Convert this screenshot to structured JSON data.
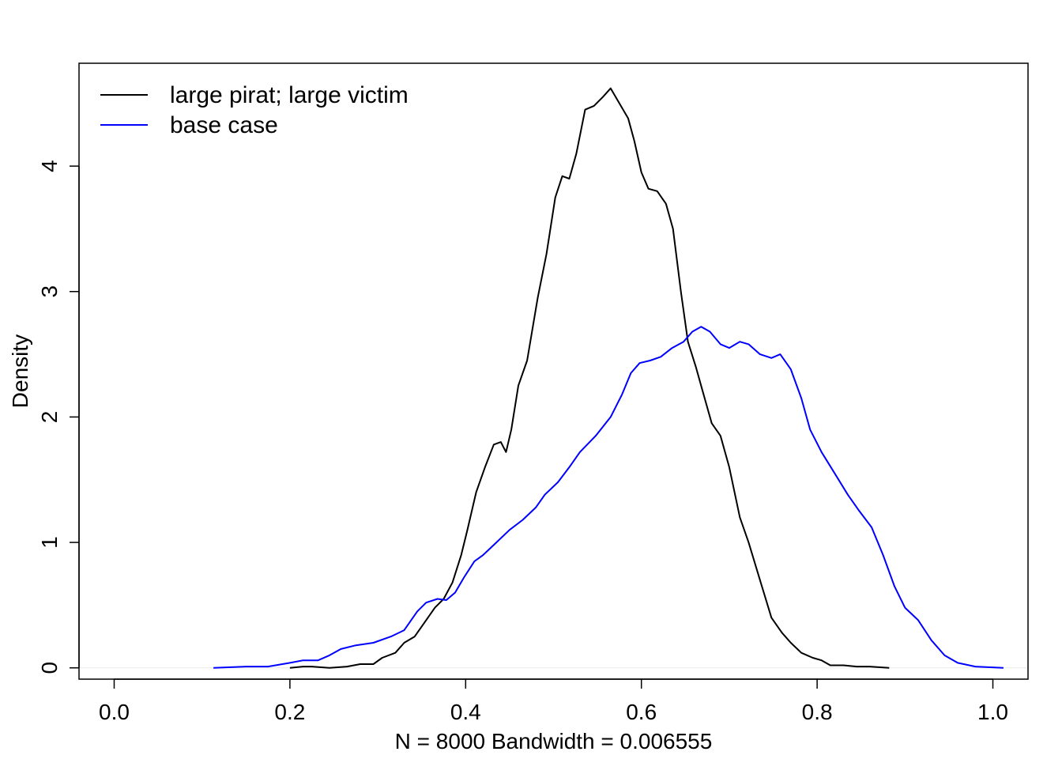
{
  "chart_data": {
    "type": "line",
    "title": "",
    "xlabel": "N = 8000   Bandwidth = 0.006555",
    "ylabel": "Density",
    "xlim": [
      -0.04,
      1.04
    ],
    "ylim": [
      -0.09,
      4.82
    ],
    "x_ticks": [
      0.0,
      0.2,
      0.4,
      0.6,
      0.8,
      1.0
    ],
    "x_tick_labels": [
      "0.0",
      "0.2",
      "0.4",
      "0.6",
      "0.8",
      "1.0"
    ],
    "y_ticks": [
      0,
      1,
      2,
      3,
      4
    ],
    "y_tick_labels": [
      "0",
      "1",
      "2",
      "3",
      "4"
    ],
    "grid": false,
    "legend_position": "top-left",
    "zero_line": true,
    "series": [
      {
        "name": "large pirat; large victim",
        "color": "#000000",
        "points": [
          [
            0.2,
            0.0
          ],
          [
            0.215,
            0.01
          ],
          [
            0.225,
            0.01
          ],
          [
            0.245,
            0.0
          ],
          [
            0.265,
            0.01
          ],
          [
            0.28,
            0.03
          ],
          [
            0.295,
            0.03
          ],
          [
            0.305,
            0.08
          ],
          [
            0.32,
            0.12
          ],
          [
            0.33,
            0.2
          ],
          [
            0.342,
            0.25
          ],
          [
            0.355,
            0.38
          ],
          [
            0.365,
            0.48
          ],
          [
            0.375,
            0.55
          ],
          [
            0.385,
            0.68
          ],
          [
            0.395,
            0.9
          ],
          [
            0.402,
            1.1
          ],
          [
            0.412,
            1.4
          ],
          [
            0.422,
            1.6
          ],
          [
            0.432,
            1.78
          ],
          [
            0.44,
            1.8
          ],
          [
            0.446,
            1.72
          ],
          [
            0.452,
            1.9
          ],
          [
            0.46,
            2.25
          ],
          [
            0.47,
            2.45
          ],
          [
            0.482,
            2.95
          ],
          [
            0.492,
            3.3
          ],
          [
            0.502,
            3.75
          ],
          [
            0.51,
            3.92
          ],
          [
            0.518,
            3.9
          ],
          [
            0.526,
            4.1
          ],
          [
            0.536,
            4.45
          ],
          [
            0.546,
            4.48
          ],
          [
            0.556,
            4.55
          ],
          [
            0.565,
            4.62
          ],
          [
            0.575,
            4.5
          ],
          [
            0.585,
            4.38
          ],
          [
            0.592,
            4.2
          ],
          [
            0.6,
            3.95
          ],
          [
            0.608,
            3.82
          ],
          [
            0.618,
            3.8
          ],
          [
            0.628,
            3.7
          ],
          [
            0.636,
            3.5
          ],
          [
            0.645,
            3.0
          ],
          [
            0.653,
            2.6
          ],
          [
            0.662,
            2.4
          ],
          [
            0.67,
            2.2
          ],
          [
            0.68,
            1.95
          ],
          [
            0.69,
            1.85
          ],
          [
            0.7,
            1.6
          ],
          [
            0.712,
            1.2
          ],
          [
            0.722,
            1.0
          ],
          [
            0.735,
            0.7
          ],
          [
            0.748,
            0.4
          ],
          [
            0.76,
            0.28
          ],
          [
            0.77,
            0.2
          ],
          [
            0.782,
            0.12
          ],
          [
            0.795,
            0.08
          ],
          [
            0.805,
            0.06
          ],
          [
            0.815,
            0.02
          ],
          [
            0.83,
            0.02
          ],
          [
            0.845,
            0.01
          ],
          [
            0.86,
            0.01
          ],
          [
            0.882,
            0.0
          ]
        ]
      },
      {
        "name": "base case",
        "color": "#0000FF",
        "points": [
          [
            0.113,
            0.0
          ],
          [
            0.15,
            0.01
          ],
          [
            0.175,
            0.01
          ],
          [
            0.2,
            0.04
          ],
          [
            0.215,
            0.06
          ],
          [
            0.232,
            0.06
          ],
          [
            0.245,
            0.1
          ],
          [
            0.258,
            0.15
          ],
          [
            0.275,
            0.18
          ],
          [
            0.295,
            0.2
          ],
          [
            0.315,
            0.25
          ],
          [
            0.33,
            0.3
          ],
          [
            0.345,
            0.45
          ],
          [
            0.355,
            0.52
          ],
          [
            0.368,
            0.55
          ],
          [
            0.378,
            0.54
          ],
          [
            0.388,
            0.6
          ],
          [
            0.398,
            0.72
          ],
          [
            0.41,
            0.85
          ],
          [
            0.42,
            0.9
          ],
          [
            0.435,
            1.0
          ],
          [
            0.45,
            1.1
          ],
          [
            0.465,
            1.18
          ],
          [
            0.48,
            1.28
          ],
          [
            0.49,
            1.38
          ],
          [
            0.505,
            1.48
          ],
          [
            0.518,
            1.6
          ],
          [
            0.53,
            1.72
          ],
          [
            0.548,
            1.85
          ],
          [
            0.565,
            2.0
          ],
          [
            0.578,
            2.18
          ],
          [
            0.588,
            2.35
          ],
          [
            0.598,
            2.43
          ],
          [
            0.61,
            2.45
          ],
          [
            0.622,
            2.48
          ],
          [
            0.635,
            2.55
          ],
          [
            0.648,
            2.6
          ],
          [
            0.658,
            2.68
          ],
          [
            0.668,
            2.72
          ],
          [
            0.678,
            2.68
          ],
          [
            0.69,
            2.58
          ],
          [
            0.7,
            2.55
          ],
          [
            0.712,
            2.6
          ],
          [
            0.722,
            2.58
          ],
          [
            0.735,
            2.5
          ],
          [
            0.748,
            2.47
          ],
          [
            0.758,
            2.5
          ],
          [
            0.77,
            2.38
          ],
          [
            0.782,
            2.15
          ],
          [
            0.792,
            1.9
          ],
          [
            0.805,
            1.72
          ],
          [
            0.82,
            1.55
          ],
          [
            0.835,
            1.38
          ],
          [
            0.848,
            1.25
          ],
          [
            0.862,
            1.12
          ],
          [
            0.875,
            0.9
          ],
          [
            0.888,
            0.65
          ],
          [
            0.9,
            0.48
          ],
          [
            0.915,
            0.38
          ],
          [
            0.93,
            0.22
          ],
          [
            0.945,
            0.1
          ],
          [
            0.96,
            0.04
          ],
          [
            0.98,
            0.01
          ],
          [
            1.012,
            0.0
          ]
        ]
      }
    ]
  }
}
